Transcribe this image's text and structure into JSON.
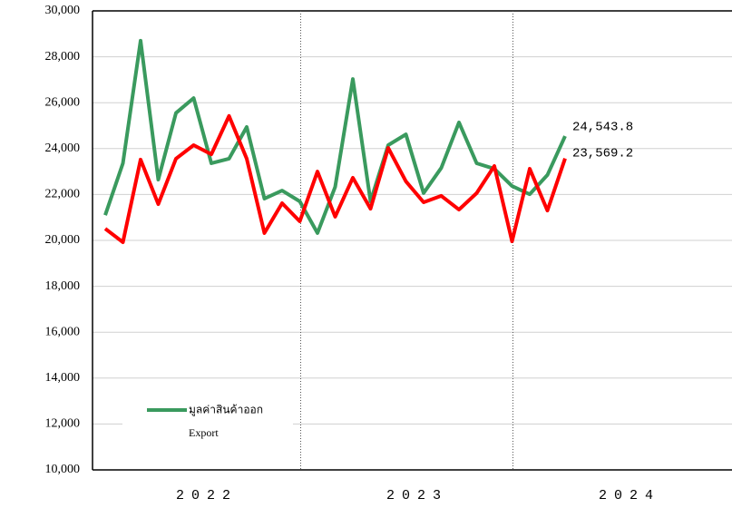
{
  "chart_data": {
    "type": "line",
    "categories": [
      null,
      null,
      null,
      null,
      null,
      null,
      null,
      null,
      null,
      null,
      null,
      null,
      null,
      null,
      null,
      null,
      null,
      null,
      null,
      null,
      null,
      null,
      null,
      null,
      null,
      null,
      null
    ],
    "x_groups": [
      "2022",
      "2023",
      "2024"
    ],
    "series": [
      {
        "name": "มูลค่าสินค้าออก",
        "color": "#3a9a5e",
        "values": [
          21100,
          23360,
          28700,
          22650,
          25550,
          26200,
          23360,
          23560,
          24940,
          21820,
          22170,
          21700,
          20320,
          22330,
          27030,
          21700,
          24150,
          24620,
          22060,
          23160,
          25140,
          23360,
          23120,
          22370,
          22010,
          22850,
          24543.8
        ],
        "value_labels": [
          null,
          null,
          null,
          null,
          null,
          null,
          null,
          null,
          null,
          null,
          null,
          null,
          null,
          null,
          null,
          null,
          null,
          null,
          null,
          null,
          null,
          null,
          null,
          null,
          null,
          null,
          "24,543.8"
        ]
      },
      {
        "color": "#ff0000",
        "values": [
          20510,
          19920,
          23520,
          21580,
          23560,
          24150,
          23750,
          25420,
          23560,
          20320,
          21620,
          20830,
          23000,
          21030,
          22730,
          21380,
          24030,
          22570,
          21660,
          21940,
          21340,
          22060,
          23240,
          19960,
          23120,
          21300,
          23569.2
        ],
        "value_labels": [
          null,
          null,
          null,
          null,
          null,
          null,
          null,
          null,
          null,
          null,
          null,
          null,
          null,
          null,
          null,
          null,
          null,
          null,
          null,
          null,
          null,
          null,
          null,
          null,
          null,
          null,
          "23,569.2"
        ]
      }
    ],
    "legend_note": "Export",
    "ylim": [
      10000,
      30000
    ],
    "yticks": [
      {
        "value": 10000,
        "label": "10,000"
      },
      {
        "value": 12000,
        "label": "12,000"
      },
      {
        "value": 14000,
        "label": "14,000"
      },
      {
        "value": 16000,
        "label": "16,000"
      },
      {
        "value": 18000,
        "label": "18,000"
      },
      {
        "value": 20000,
        "label": "20,000"
      },
      {
        "value": 22000,
        "label": "22,000"
      },
      {
        "value": 24000,
        "label": "24,000"
      },
      {
        "value": 26000,
        "label": "26,000"
      },
      {
        "value": 28000,
        "label": "28,000"
      },
      {
        "value": 30000,
        "label": "30,000"
      }
    ],
    "grid": true
  }
}
